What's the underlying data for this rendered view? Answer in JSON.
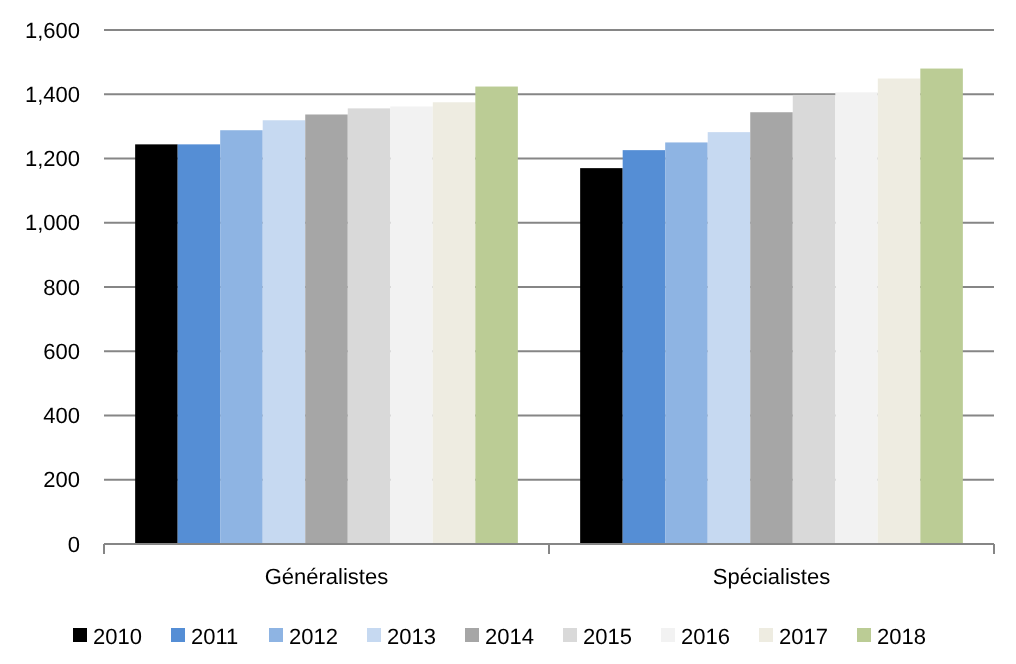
{
  "chart_data": {
    "type": "bar",
    "categories": [
      "Généralistes",
      "Spécialistes"
    ],
    "series": [
      {
        "name": "2010",
        "color": "#000000",
        "values": [
          1244,
          1170
        ]
      },
      {
        "name": "2011",
        "color": "#558ed5",
        "values": [
          1244,
          1226
        ]
      },
      {
        "name": "2012",
        "color": "#8eb4e3",
        "values": [
          1288,
          1250
        ]
      },
      {
        "name": "2013",
        "color": "#c6d9f1",
        "values": [
          1319,
          1282
        ]
      },
      {
        "name": "2014",
        "color": "#a6a6a6",
        "values": [
          1337,
          1344
        ]
      },
      {
        "name": "2015",
        "color": "#d9d9d9",
        "values": [
          1356,
          1398
        ]
      },
      {
        "name": "2016",
        "color": "#f2f2f2",
        "values": [
          1362,
          1406
        ]
      },
      {
        "name": "2017",
        "color": "#eeece1",
        "values": [
          1375,
          1449
        ]
      },
      {
        "name": "2018",
        "color": "#bbcc95",
        "values": [
          1424,
          1480
        ]
      }
    ],
    "ylim": [
      0,
      1600
    ],
    "yticks": [
      {
        "value": 0,
        "label": "0"
      },
      {
        "value": 200,
        "label": "200"
      },
      {
        "value": 400,
        "label": "400"
      },
      {
        "value": 600,
        "label": "600"
      },
      {
        "value": 800,
        "label": "800"
      },
      {
        "value": 1000,
        "label": "1,000"
      },
      {
        "value": 1200,
        "label": "1,200"
      },
      {
        "value": 1400,
        "label": "1,400"
      },
      {
        "value": 1600,
        "label": "1,600"
      }
    ],
    "grid": "y",
    "legend": "bottom"
  }
}
